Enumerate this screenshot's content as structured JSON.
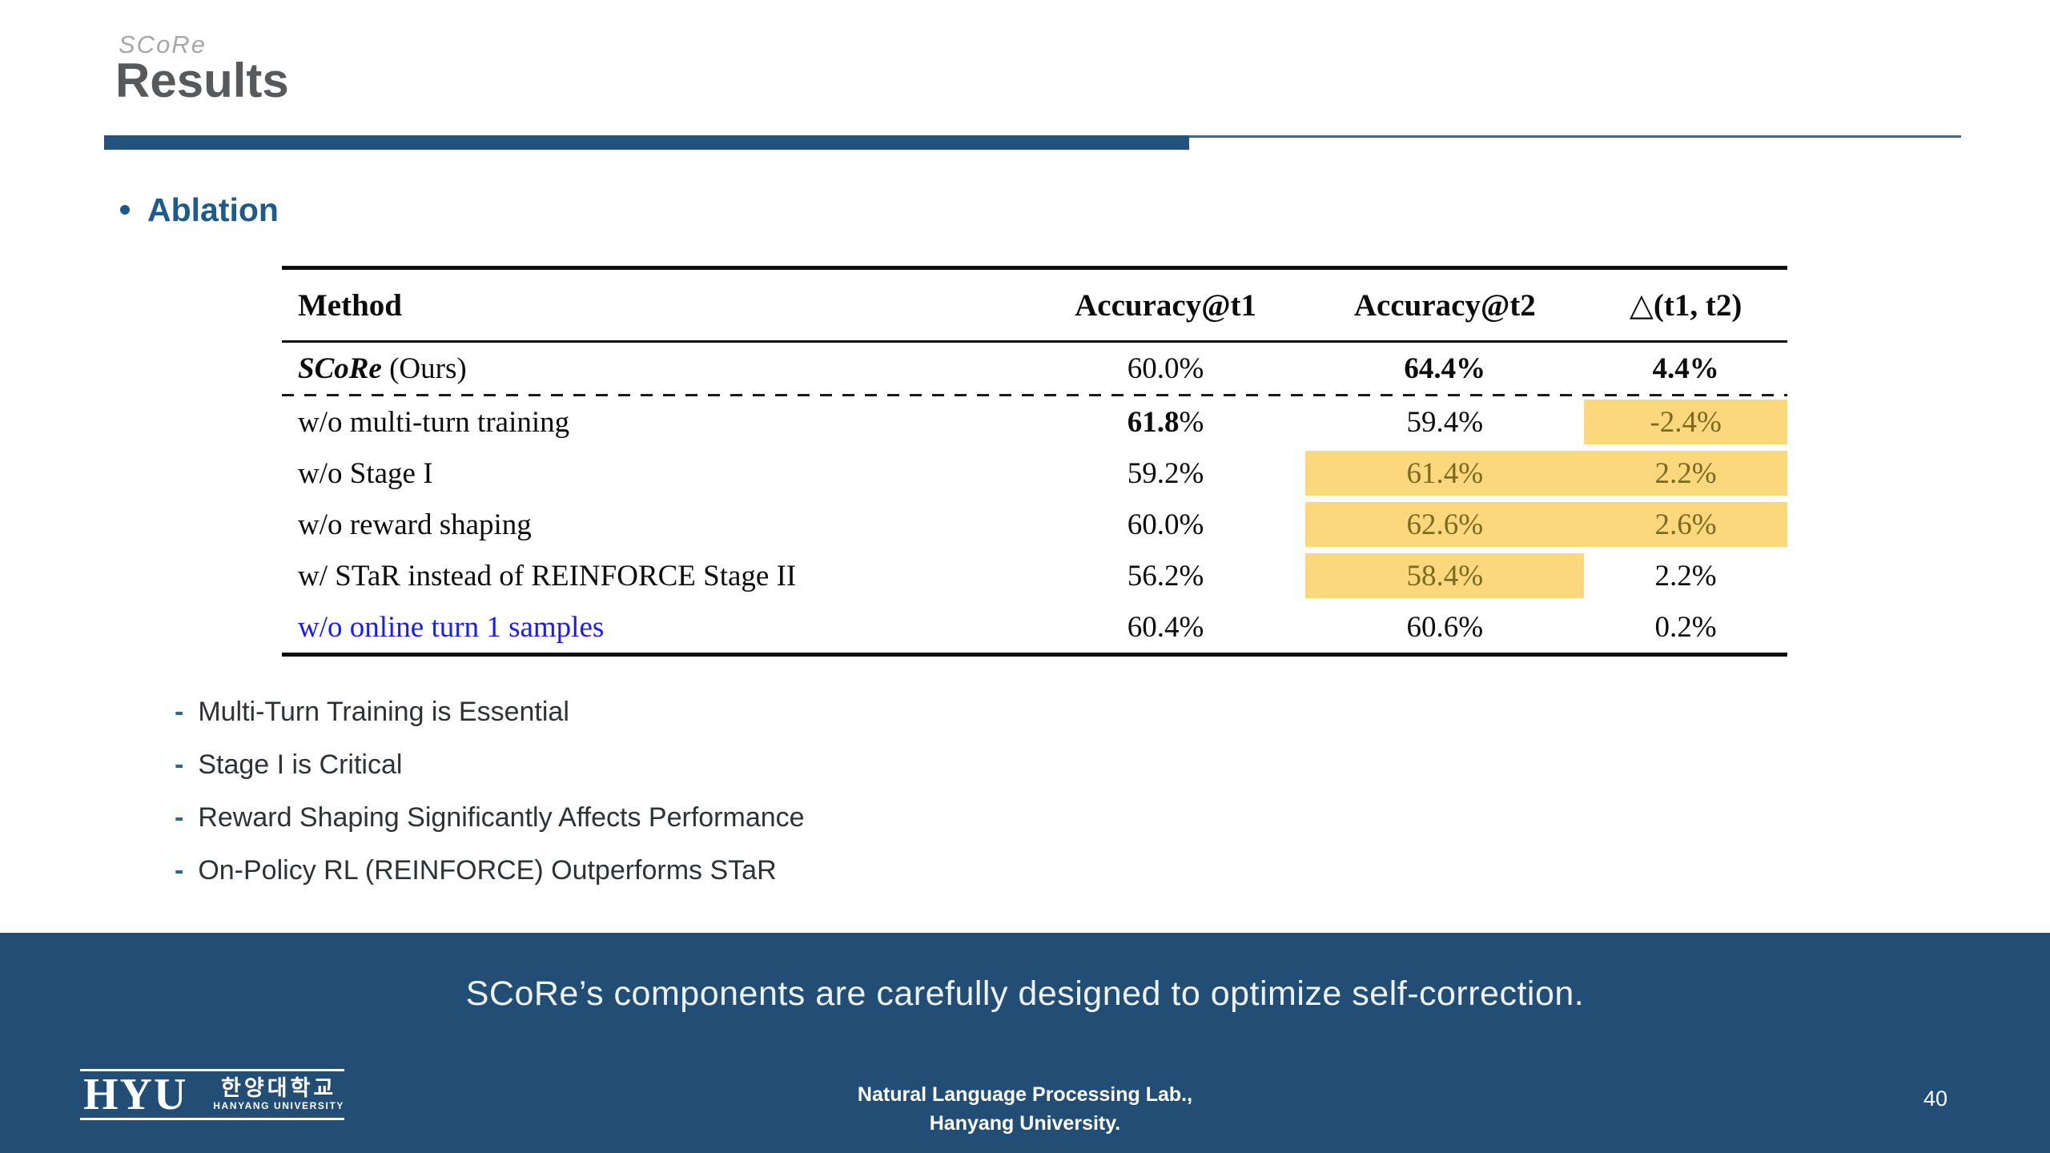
{
  "header": {
    "mini_title": "SCoRe",
    "title": "Results"
  },
  "section": {
    "heading": "Ablation"
  },
  "table": {
    "columns": [
      {
        "key": "method",
        "label": "Method"
      },
      {
        "key": "t1",
        "label": "Accuracy@t1"
      },
      {
        "key": "t2",
        "label": "Accuracy@t2"
      },
      {
        "key": "delta",
        "label": "△(t1, t2)"
      }
    ],
    "rows": [
      {
        "method": {
          "segments": [
            {
              "text": "SCoRe",
              "bold": true,
              "italic": true
            },
            {
              "text": " (Ours)"
            }
          ]
        },
        "t1": {
          "text": "60.0%"
        },
        "t2": {
          "text": "64.4%",
          "bold": true
        },
        "delta": {
          "text": "4.4%",
          "bold": true
        },
        "separator_after": "dashed"
      },
      {
        "method": {
          "text": "w/o multi-turn training"
        },
        "t1": {
          "segments": [
            {
              "text": "61.8",
              "bold": true
            },
            {
              "text": "%"
            }
          ]
        },
        "t2": {
          "text": "59.4%"
        },
        "delta": {
          "text": "-2.4%",
          "highlight": true
        }
      },
      {
        "method": {
          "text": "w/o Stage I"
        },
        "t1": {
          "text": "59.2%"
        },
        "t2": {
          "text": "61.4%",
          "highlight": true
        },
        "delta": {
          "text": "2.2%",
          "highlight": true
        }
      },
      {
        "method": {
          "text": "w/o reward shaping"
        },
        "t1": {
          "text": "60.0%"
        },
        "t2": {
          "text": "62.6%",
          "highlight": true
        },
        "delta": {
          "text": "2.6%",
          "highlight": true
        }
      },
      {
        "method": {
          "text": "w/ STaR instead of REINFORCE Stage II"
        },
        "t1": {
          "text": "56.2%"
        },
        "t2": {
          "text": "58.4%",
          "highlight": true
        },
        "delta": {
          "text": "2.2%"
        }
      },
      {
        "method": {
          "text": "w/o online turn 1 samples",
          "color": "blue"
        },
        "t1": {
          "text": "60.4%"
        },
        "t2": {
          "text": "60.6%"
        },
        "delta": {
          "text": "0.2%"
        }
      }
    ]
  },
  "takeaways": {
    "items": [
      "Multi-Turn Training is Essential",
      "Stage I is Critical",
      "Reward Shaping Significantly Affects Performance",
      "On-Policy RL (REINFORCE) Outperforms STaR"
    ]
  },
  "banner": {
    "message": "SCoRe’s components are carefully designed to optimize self-correction."
  },
  "footer": {
    "logo": {
      "acronym": "HYU",
      "korean_name": "한양대학교",
      "english_name": "HANYANG UNIVERSITY"
    },
    "affiliation_line1": "Natural Language Processing Lab.,",
    "affiliation_line2": "Hanyang University.",
    "page_number": "40"
  },
  "colors": {
    "accent": "#23537c",
    "thin_rule": "#3c6a93",
    "heading_blue": "#1e5b8c",
    "banner_blue": "#224e76",
    "highlight_bg": "#fbd77d",
    "highlight_text": "#7d6a1f",
    "method_blue": "#1a1aff",
    "title_gray": "#58595b",
    "mini_title_gray": "#a7a7a7",
    "bullet_dash": "#2f6690"
  }
}
